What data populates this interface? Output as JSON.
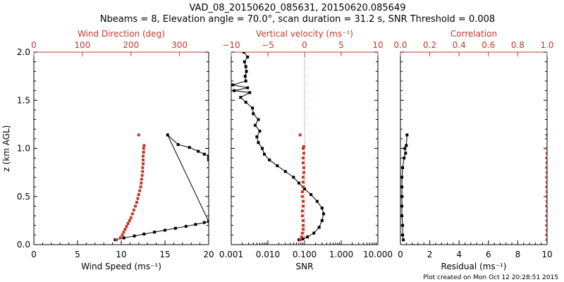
{
  "header": {
    "title_line1": "VAD_08_20150620_085631, 20150620.085649",
    "title_line2": "Nbeams = 8, Elevation angle = 70.0°, scan duration = 31.2 s, SNR Threshold = 0.008"
  },
  "footer": {
    "created": "Plot created on Mon Oct 12 20:28:51 2015"
  },
  "colors": {
    "axis": "#000000",
    "secondary": "#c0392b",
    "primary_series": "#000000"
  },
  "chart_data": [
    {
      "type": "scatter",
      "ylabel": "z (km AGL)",
      "ylim": [
        0,
        2.0
      ],
      "yticks": [
        "0.0",
        "0.5",
        "1.0",
        "1.5",
        "2.0"
      ],
      "xlabel": "Wind Speed (ms⁻¹)",
      "xlim": [
        0,
        20
      ],
      "xticks": [
        "0",
        "5",
        "10",
        "15",
        "20"
      ],
      "top_xlabel": "Wind Direction (deg)",
      "top_xlim": [
        0,
        360
      ],
      "top_xticks": [
        "0",
        "100",
        "200",
        "300"
      ],
      "series": [
        {
          "axis": "bottom",
          "color": "#000000",
          "connected": true,
          "points": [
            [
              9.3,
              0.05
            ],
            [
              10.3,
              0.07
            ],
            [
              11.5,
              0.09
            ],
            [
              12.6,
              0.11
            ],
            [
              13.8,
              0.13
            ],
            [
              15.0,
              0.15
            ],
            [
              16.2,
              0.17
            ],
            [
              17.4,
              0.19
            ],
            [
              18.5,
              0.21
            ],
            [
              19.5,
              0.23
            ],
            [
              20.0,
              0.24
            ],
            [
              15.3,
              1.14
            ],
            [
              16.5,
              1.04
            ],
            [
              17.8,
              1.01
            ],
            [
              18.8,
              0.97
            ],
            [
              19.5,
              0.94
            ],
            [
              20.0,
              0.92
            ],
            [
              20.0,
              0.88
            ]
          ]
        },
        {
          "axis": "top",
          "color": "#c0392b",
          "connected": false,
          "points": [
            [
              170,
              0.05
            ],
            [
              178,
              0.07
            ],
            [
              182,
              0.1
            ],
            [
              185,
              0.13
            ],
            [
              188,
              0.16
            ],
            [
              191,
              0.19
            ],
            [
              194,
              0.22
            ],
            [
              197,
              0.25
            ],
            [
              200,
              0.28
            ],
            [
              203,
              0.32
            ],
            [
              206,
              0.36
            ],
            [
              209,
              0.4
            ],
            [
              212,
              0.44
            ],
            [
              214,
              0.48
            ],
            [
              216,
              0.52
            ],
            [
              218,
              0.56
            ],
            [
              220,
              0.6
            ],
            [
              221,
              0.64
            ],
            [
              222,
              0.68
            ],
            [
              223,
              0.72
            ],
            [
              224,
              0.76
            ],
            [
              224,
              0.8
            ],
            [
              225,
              0.84
            ],
            [
              225,
              0.88
            ],
            [
              225,
              0.92
            ],
            [
              226,
              0.96
            ],
            [
              226,
              1.0
            ],
            [
              227,
              1.03
            ],
            [
              216,
              1.14
            ]
          ]
        }
      ]
    },
    {
      "type": "scatter",
      "xlabel": "SNR",
      "xscale": "log",
      "xlim": [
        0.001,
        10.0
      ],
      "xticks": [
        "0.001",
        "0.010",
        "0.100",
        "1.000",
        "10.000"
      ],
      "top_xlabel": "Vertical velocity (ms⁻¹)",
      "top_xlim": [
        -10,
        10
      ],
      "top_xticks": [
        "−10",
        "−5",
        "0",
        "5",
        "10"
      ],
      "zero_line": "dotted at vertical velocity 0",
      "series": [
        {
          "axis": "bottom",
          "color": "#000000",
          "connected": true,
          "points": [
            [
              0.07,
              0.05
            ],
            [
              0.09,
              0.06
            ],
            [
              0.12,
              0.08
            ],
            [
              0.18,
              0.12
            ],
            [
              0.25,
              0.18
            ],
            [
              0.3,
              0.25
            ],
            [
              0.33,
              0.32
            ],
            [
              0.3,
              0.38
            ],
            [
              0.22,
              0.45
            ],
            [
              0.15,
              0.52
            ],
            [
              0.1,
              0.58
            ],
            [
              0.07,
              0.64
            ],
            [
              0.05,
              0.7
            ],
            [
              0.03,
              0.76
            ],
            [
              0.018,
              0.82
            ],
            [
              0.011,
              0.88
            ],
            [
              0.008,
              0.94
            ],
            [
              0.007,
              1.0
            ],
            [
              0.0055,
              1.06
            ],
            [
              0.005,
              1.12
            ],
            [
              0.006,
              1.18
            ],
            [
              0.0045,
              1.24
            ],
            [
              0.0055,
              1.3
            ],
            [
              0.004,
              1.36
            ],
            [
              0.0038,
              1.42
            ],
            [
              0.0025,
              1.48
            ],
            [
              0.0018,
              1.53
            ],
            [
              0.0032,
              1.58
            ],
            [
              0.0012,
              1.6
            ],
            [
              0.0028,
              1.63
            ],
            [
              0.0011,
              1.66
            ],
            [
              0.0025,
              1.7
            ],
            [
              0.0024,
              1.75
            ],
            [
              0.0026,
              1.8
            ],
            [
              0.0025,
              1.85
            ],
            [
              0.0023,
              1.9
            ],
            [
              0.0028,
              1.95
            ],
            [
              0.0022,
              2.0
            ]
          ]
        },
        {
          "axis": "top",
          "color": "#c0392b",
          "connected": false,
          "points": [
            [
              -0.6,
              0.05
            ],
            [
              -0.4,
              0.08
            ],
            [
              -0.3,
              0.12
            ],
            [
              -0.2,
              0.16
            ],
            [
              -0.2,
              0.2
            ],
            [
              -0.2,
              0.25
            ],
            [
              -0.3,
              0.3
            ],
            [
              -0.3,
              0.35
            ],
            [
              -0.2,
              0.4
            ],
            [
              -0.2,
              0.45
            ],
            [
              -0.3,
              0.5
            ],
            [
              -0.3,
              0.55
            ],
            [
              -0.2,
              0.6
            ],
            [
              -0.2,
              0.65
            ],
            [
              -0.2,
              0.7
            ],
            [
              -0.1,
              0.75
            ],
            [
              -0.1,
              0.8
            ],
            [
              -0.2,
              0.85
            ],
            [
              -0.2,
              0.9
            ],
            [
              -0.1,
              0.95
            ],
            [
              -0.2,
              1.0
            ],
            [
              -0.1,
              1.02
            ],
            [
              -0.6,
              1.14
            ]
          ]
        }
      ]
    },
    {
      "type": "scatter",
      "xlabel": "Residual (ms⁻¹)",
      "xlim": [
        0,
        10
      ],
      "xticks": [
        "0",
        "2",
        "4",
        "6",
        "8",
        "10"
      ],
      "top_xlabel": "Correlation",
      "top_xlim": [
        0.0,
        1.0
      ],
      "top_xticks": [
        "0.0",
        "0.2",
        "0.4",
        "0.6",
        "0.8",
        "1.0"
      ],
      "series": [
        {
          "axis": "bottom",
          "color": "#000000",
          "connected": true,
          "points": [
            [
              0.2,
              0.05
            ],
            [
              0.15,
              0.1
            ],
            [
              0.15,
              0.2
            ],
            [
              0.1,
              0.3
            ],
            [
              0.1,
              0.4
            ],
            [
              0.1,
              0.5
            ],
            [
              0.1,
              0.6
            ],
            [
              0.1,
              0.7
            ],
            [
              0.15,
              0.8
            ],
            [
              0.25,
              0.9
            ],
            [
              0.35,
              0.95
            ],
            [
              0.3,
              1.0
            ],
            [
              0.4,
              1.03
            ],
            [
              0.45,
              1.14
            ]
          ]
        },
        {
          "axis": "top",
          "color": "#c0392b",
          "connected": false,
          "points": [
            [
              1.0,
              0.05
            ],
            [
              1.0,
              0.1
            ],
            [
              1.0,
              0.15
            ],
            [
              1.0,
              0.2
            ],
            [
              1.0,
              0.25
            ],
            [
              1.0,
              0.3
            ],
            [
              1.0,
              0.35
            ],
            [
              1.0,
              0.4
            ],
            [
              1.0,
              0.45
            ],
            [
              1.0,
              0.5
            ],
            [
              1.0,
              0.55
            ],
            [
              1.0,
              0.6
            ],
            [
              1.0,
              0.65
            ],
            [
              1.0,
              0.7
            ],
            [
              1.0,
              0.75
            ],
            [
              1.0,
              0.8
            ],
            [
              1.0,
              0.85
            ],
            [
              1.0,
              0.9
            ],
            [
              1.0,
              0.95
            ],
            [
              1.0,
              1.0
            ],
            [
              1.0,
              1.14
            ]
          ]
        }
      ]
    }
  ]
}
